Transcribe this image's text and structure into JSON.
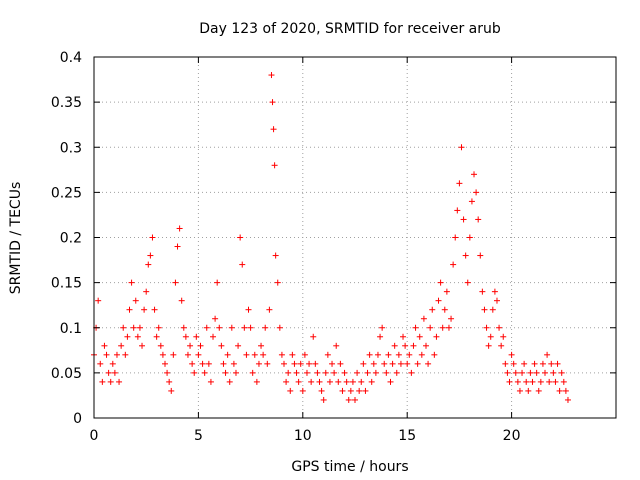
{
  "chart_data": {
    "type": "scatter",
    "title": "Day 123 of 2020, SRMTID for receiver arub",
    "xlabel": "GPS time / hours",
    "ylabel": "SRMTID / TECUs",
    "xlim": [
      0,
      25
    ],
    "ylim": [
      0,
      0.4
    ],
    "x_ticks": [
      0,
      5,
      10,
      15,
      20
    ],
    "x_tick_labels": [
      "0",
      "5",
      "10",
      "15",
      "20"
    ],
    "y_ticks": [
      0,
      0.05,
      0.1,
      0.15,
      0.2,
      0.25,
      0.3,
      0.35,
      0.4
    ],
    "y_tick_labels": [
      "0",
      "0.05",
      "0.1",
      "0.15",
      "0.2",
      "0.25",
      "0.3",
      "0.35",
      "0.4"
    ],
    "grid": true,
    "marker": "+",
    "color": "#ff0000",
    "series": [
      {
        "name": "SRMTID",
        "x": [
          0.0,
          0.1,
          0.2,
          0.3,
          0.4,
          0.5,
          0.6,
          0.7,
          0.8,
          0.9,
          1.0,
          1.1,
          1.2,
          1.3,
          1.4,
          1.5,
          1.6,
          1.7,
          1.8,
          1.9,
          2.0,
          2.1,
          2.2,
          2.3,
          2.4,
          2.5,
          2.6,
          2.7,
          2.8,
          2.9,
          3.0,
          3.1,
          3.2,
          3.3,
          3.4,
          3.5,
          3.6,
          3.7,
          3.8,
          3.9,
          4.0,
          4.1,
          4.2,
          4.3,
          4.4,
          4.5,
          4.6,
          4.7,
          4.8,
          4.9,
          5.0,
          5.1,
          5.2,
          5.3,
          5.4,
          5.5,
          5.6,
          5.7,
          5.8,
          5.9,
          6.0,
          6.1,
          6.2,
          6.3,
          6.4,
          6.5,
          6.6,
          6.7,
          6.8,
          6.9,
          7.0,
          7.1,
          7.2,
          7.3,
          7.4,
          7.5,
          7.6,
          7.7,
          7.8,
          7.9,
          8.0,
          8.1,
          8.2,
          8.3,
          8.4,
          8.5,
          8.55,
          8.6,
          8.65,
          8.7,
          8.8,
          8.9,
          9.0,
          9.1,
          9.2,
          9.3,
          9.4,
          9.5,
          9.6,
          9.7,
          9.8,
          9.9,
          10.0,
          10.1,
          10.2,
          10.3,
          10.4,
          10.5,
          10.6,
          10.7,
          10.8,
          10.9,
          11.0,
          11.1,
          11.2,
          11.3,
          11.4,
          11.5,
          11.6,
          11.7,
          11.8,
          11.9,
          12.0,
          12.1,
          12.2,
          12.3,
          12.4,
          12.5,
          12.6,
          12.7,
          12.8,
          12.9,
          13.0,
          13.1,
          13.2,
          13.3,
          13.4,
          13.5,
          13.6,
          13.7,
          13.8,
          13.9,
          14.0,
          14.1,
          14.2,
          14.3,
          14.4,
          14.5,
          14.6,
          14.7,
          14.8,
          14.9,
          15.0,
          15.1,
          15.2,
          15.3,
          15.4,
          15.5,
          15.6,
          15.7,
          15.8,
          15.9,
          16.0,
          16.1,
          16.2,
          16.3,
          16.4,
          16.5,
          16.6,
          16.7,
          16.8,
          16.9,
          17.0,
          17.1,
          17.2,
          17.3,
          17.4,
          17.5,
          17.6,
          17.7,
          17.8,
          17.9,
          18.0,
          18.1,
          18.2,
          18.3,
          18.4,
          18.5,
          18.6,
          18.7,
          18.8,
          18.9,
          19.0,
          19.1,
          19.2,
          19.3,
          19.4,
          19.5,
          19.6,
          19.7,
          19.8,
          19.9,
          20.0,
          20.1,
          20.2,
          20.3,
          20.4,
          20.5,
          20.6,
          20.7,
          20.8,
          20.9,
          21.0,
          21.1,
          21.2,
          21.3,
          21.4,
          21.5,
          21.6,
          21.7,
          21.8,
          21.9,
          22.0,
          22.1,
          22.2,
          22.3,
          22.4,
          22.5,
          22.6,
          22.7
        ],
        "y": [
          0.07,
          0.1,
          0.13,
          0.06,
          0.04,
          0.08,
          0.07,
          0.05,
          0.04,
          0.06,
          0.05,
          0.07,
          0.04,
          0.08,
          0.1,
          0.07,
          0.09,
          0.12,
          0.15,
          0.1,
          0.13,
          0.09,
          0.1,
          0.08,
          0.12,
          0.14,
          0.17,
          0.18,
          0.2,
          0.12,
          0.09,
          0.1,
          0.08,
          0.07,
          0.06,
          0.05,
          0.04,
          0.03,
          0.07,
          0.15,
          0.19,
          0.21,
          0.13,
          0.1,
          0.09,
          0.07,
          0.08,
          0.06,
          0.05,
          0.09,
          0.07,
          0.08,
          0.06,
          0.05,
          0.1,
          0.06,
          0.04,
          0.09,
          0.11,
          0.15,
          0.1,
          0.08,
          0.06,
          0.05,
          0.07,
          0.04,
          0.1,
          0.06,
          0.05,
          0.08,
          0.2,
          0.17,
          0.1,
          0.07,
          0.12,
          0.1,
          0.05,
          0.07,
          0.04,
          0.06,
          0.08,
          0.07,
          0.1,
          0.06,
          0.12,
          0.38,
          0.35,
          0.32,
          0.28,
          0.18,
          0.15,
          0.1,
          0.07,
          0.06,
          0.04,
          0.05,
          0.03,
          0.07,
          0.06,
          0.05,
          0.04,
          0.06,
          0.03,
          0.07,
          0.05,
          0.06,
          0.04,
          0.09,
          0.06,
          0.05,
          0.04,
          0.03,
          0.02,
          0.05,
          0.07,
          0.04,
          0.06,
          0.05,
          0.08,
          0.04,
          0.06,
          0.03,
          0.05,
          0.04,
          0.02,
          0.03,
          0.04,
          0.02,
          0.05,
          0.03,
          0.04,
          0.06,
          0.03,
          0.05,
          0.07,
          0.04,
          0.06,
          0.05,
          0.07,
          0.09,
          0.1,
          0.06,
          0.05,
          0.07,
          0.04,
          0.06,
          0.08,
          0.05,
          0.07,
          0.06,
          0.09,
          0.08,
          0.06,
          0.07,
          0.05,
          0.08,
          0.1,
          0.06,
          0.09,
          0.07,
          0.11,
          0.08,
          0.06,
          0.1,
          0.12,
          0.07,
          0.09,
          0.13,
          0.15,
          0.1,
          0.12,
          0.14,
          0.1,
          0.11,
          0.17,
          0.2,
          0.23,
          0.26,
          0.3,
          0.22,
          0.18,
          0.15,
          0.2,
          0.24,
          0.27,
          0.25,
          0.22,
          0.18,
          0.14,
          0.12,
          0.1,
          0.08,
          0.09,
          0.12,
          0.14,
          0.13,
          0.1,
          0.08,
          0.09,
          0.06,
          0.05,
          0.04,
          0.07,
          0.06,
          0.05,
          0.04,
          0.03,
          0.05,
          0.06,
          0.04,
          0.03,
          0.05,
          0.04,
          0.06,
          0.05,
          0.03,
          0.04,
          0.06,
          0.05,
          0.07,
          0.04,
          0.06,
          0.05,
          0.04,
          0.06,
          0.03,
          0.05,
          0.04,
          0.03,
          0.02
        ]
      }
    ]
  }
}
